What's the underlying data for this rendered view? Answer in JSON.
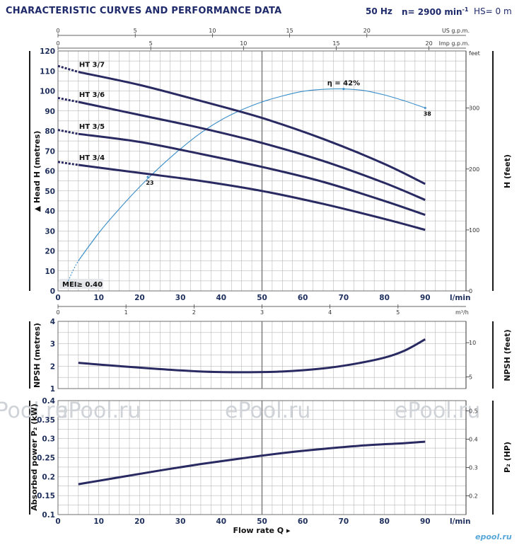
{
  "header": {
    "title": "CHARACTERISTIC CURVES AND PERFORMANCE DATA",
    "freq": "50 Hz",
    "speed_text": "n= 2900 min",
    "speed_exp": "-1",
    "hs": "HS= 0 m"
  },
  "watermark": {
    "text": "ePool.ru",
    "logo": "epool.ru"
  },
  "colors": {
    "curve": "#2a2a63",
    "eff": "#3a8dc9",
    "grid": "#aaaaaa"
  },
  "chart_data": [
    {
      "type": "line",
      "title": "",
      "ylabel": "Head H (metres)",
      "ylabel_right": "H (feet)",
      "right_unit": "feet",
      "xlabel": "l/min",
      "xlim": [
        0,
        100
      ],
      "ylim": [
        0,
        120
      ],
      "xticks": [
        0,
        10,
        20,
        30,
        40,
        50,
        60,
        70,
        80,
        90
      ],
      "yticks": [
        0,
        10,
        20,
        30,
        40,
        50,
        60,
        70,
        80,
        90,
        100,
        110,
        120
      ],
      "right_ticks": [
        0,
        100,
        200,
        300
      ],
      "top_axes": [
        {
          "unit": "US g.p.m.",
          "ticks": [
            0,
            5,
            10,
            15,
            20
          ]
        },
        {
          "unit": "Imp g.p.m.",
          "ticks": [
            0,
            5,
            10,
            15,
            20
          ]
        }
      ],
      "bottom_axis2": {
        "unit": "m³/h",
        "ticks": [
          0,
          1,
          2,
          3,
          4,
          5
        ]
      },
      "highlight_x": 50,
      "series": [
        {
          "name": "HT 3/7",
          "x": [
            5,
            20,
            35,
            50,
            65,
            80,
            90
          ],
          "y": [
            109.5,
            103,
            95,
            86.5,
            76,
            63.5,
            53.5
          ],
          "dashed_y0": 112.5
        },
        {
          "name": "HT 3/6",
          "x": [
            5,
            20,
            35,
            50,
            65,
            80,
            90
          ],
          "y": [
            94.5,
            88,
            81.5,
            74,
            65,
            54,
            45.5
          ],
          "dashed_y0": 96.5
        },
        {
          "name": "HT 3/5",
          "x": [
            5,
            20,
            35,
            50,
            65,
            80,
            90
          ],
          "y": [
            78.5,
            74.5,
            68.5,
            62,
            54.5,
            45,
            38
          ],
          "dashed_y0": 80.5
        },
        {
          "name": "HT 3/4",
          "x": [
            5,
            20,
            35,
            50,
            65,
            80,
            90
          ],
          "y": [
            63,
            59,
            55,
            50,
            43.5,
            36,
            30.5
          ],
          "dashed_y0": 64.5
        }
      ],
      "efficiency": {
        "label": "η = 42%",
        "x": [
          2.5,
          5,
          10,
          15,
          20,
          25,
          30,
          35,
          40,
          45,
          50,
          55,
          60,
          65,
          70,
          75,
          80,
          85,
          90
        ],
        "y": [
          5,
          15,
          29,
          41,
          52,
          62,
          71,
          79,
          85.5,
          90.5,
          94.5,
          97.5,
          99.8,
          100.8,
          101,
          100.2,
          98,
          95,
          91.5
        ],
        "marks": [
          {
            "x": 22,
            "y": 57,
            "label": "23"
          },
          {
            "x": 90,
            "y": 91.5,
            "label": "38"
          }
        ]
      },
      "mei_label": "MEI≥ 0.40"
    },
    {
      "type": "line",
      "ylabel": "NPSH (metres)",
      "ylabel_right": "NPSH (feet)",
      "xlim": [
        0,
        100
      ],
      "ylim": [
        1,
        4
      ],
      "yticks": [
        1,
        2,
        3,
        4
      ],
      "right_ticks": [
        5,
        10
      ],
      "series": [
        {
          "name": "NPSH",
          "x": [
            5,
            15,
            25,
            35,
            45,
            55,
            65,
            72,
            80,
            85,
            90
          ],
          "y": [
            2.15,
            2.0,
            1.87,
            1.76,
            1.73,
            1.76,
            1.9,
            2.08,
            2.38,
            2.7,
            3.2
          ]
        }
      ]
    },
    {
      "type": "line",
      "ylabel": "Absorbed power P₂ (kW)",
      "ylabel_right": "P₂ (HP)",
      "xlabel": "Flow rate Q",
      "x_unit": "l/min",
      "xlim": [
        0,
        100
      ],
      "ylim": [
        0.1,
        0.4
      ],
      "xticks": [
        0,
        10,
        20,
        30,
        40,
        50,
        60,
        70,
        80,
        90
      ],
      "yticks": [
        0.1,
        0.15,
        0.2,
        0.25,
        0.3,
        0.35,
        0.4
      ],
      "right_ticks": [
        0.2,
        0.3,
        0.4,
        0.5
      ],
      "series": [
        {
          "name": "P2",
          "x": [
            5,
            15,
            25,
            35,
            45,
            55,
            65,
            75,
            85,
            90
          ],
          "y": [
            0.18,
            0.198,
            0.216,
            0.233,
            0.248,
            0.262,
            0.273,
            0.282,
            0.288,
            0.292
          ]
        }
      ]
    }
  ]
}
